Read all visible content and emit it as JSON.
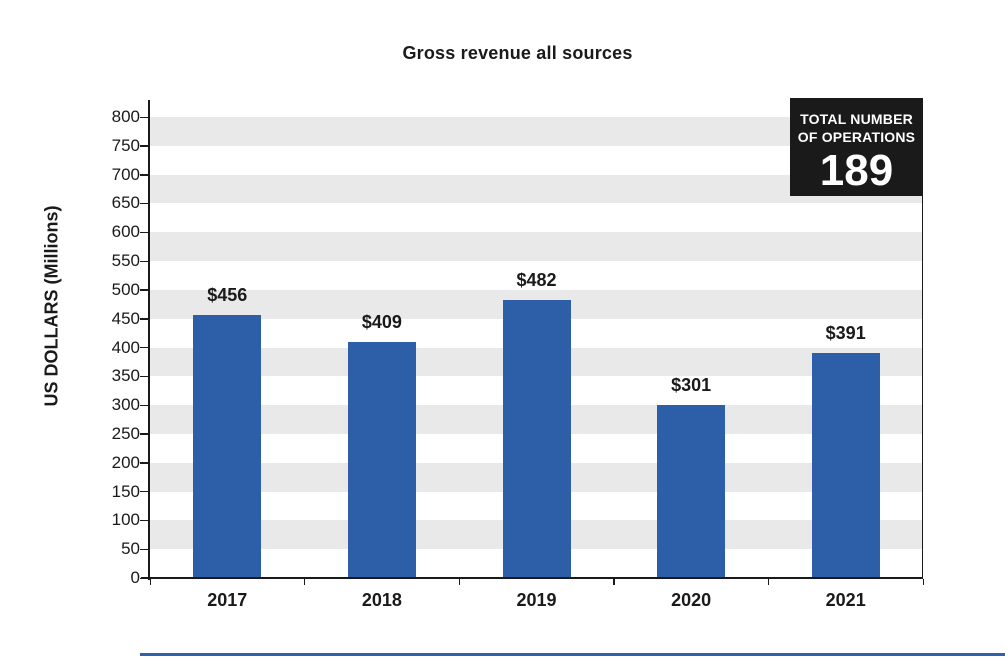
{
  "page": {
    "background": "#ffffff",
    "text_color": "#1a1a1a"
  },
  "chart_data": {
    "type": "bar",
    "title": "Gross revenue all sources",
    "xlabel": "",
    "ylabel": "US DOLLARS (Millions)",
    "categories": [
      "2017",
      "2018",
      "2019",
      "2020",
      "2021"
    ],
    "values": [
      456,
      409,
      482,
      301,
      391
    ],
    "bar_labels": [
      "$456",
      "$409",
      "$482",
      "$301",
      "$391"
    ],
    "ylim": [
      0,
      800
    ],
    "yticks": [
      0,
      50,
      100,
      150,
      200,
      250,
      300,
      350,
      400,
      450,
      500,
      550,
      600,
      650,
      700,
      750,
      800
    ],
    "ytick_labels": [
      "0",
      "50",
      "100",
      "150",
      "200",
      "250",
      "300",
      "350",
      "400",
      "450",
      "500",
      "550",
      "600",
      "650",
      "700",
      "750",
      "800"
    ],
    "grid": "alternating-horizontal-bands-every-50",
    "legend_position": "none",
    "bar_color": "#2d5fa8",
    "band_color": "#e9e9e9",
    "axis_color": "#1a1a1a"
  },
  "callout": {
    "line1": "TOTAL NUMBER",
    "line2": "OF OPERATIONS",
    "value": "189",
    "bg": "#1a1a1a",
    "text_color": "#ffffff"
  },
  "decor": {
    "bottom_rule_color": "#2f62ac"
  }
}
